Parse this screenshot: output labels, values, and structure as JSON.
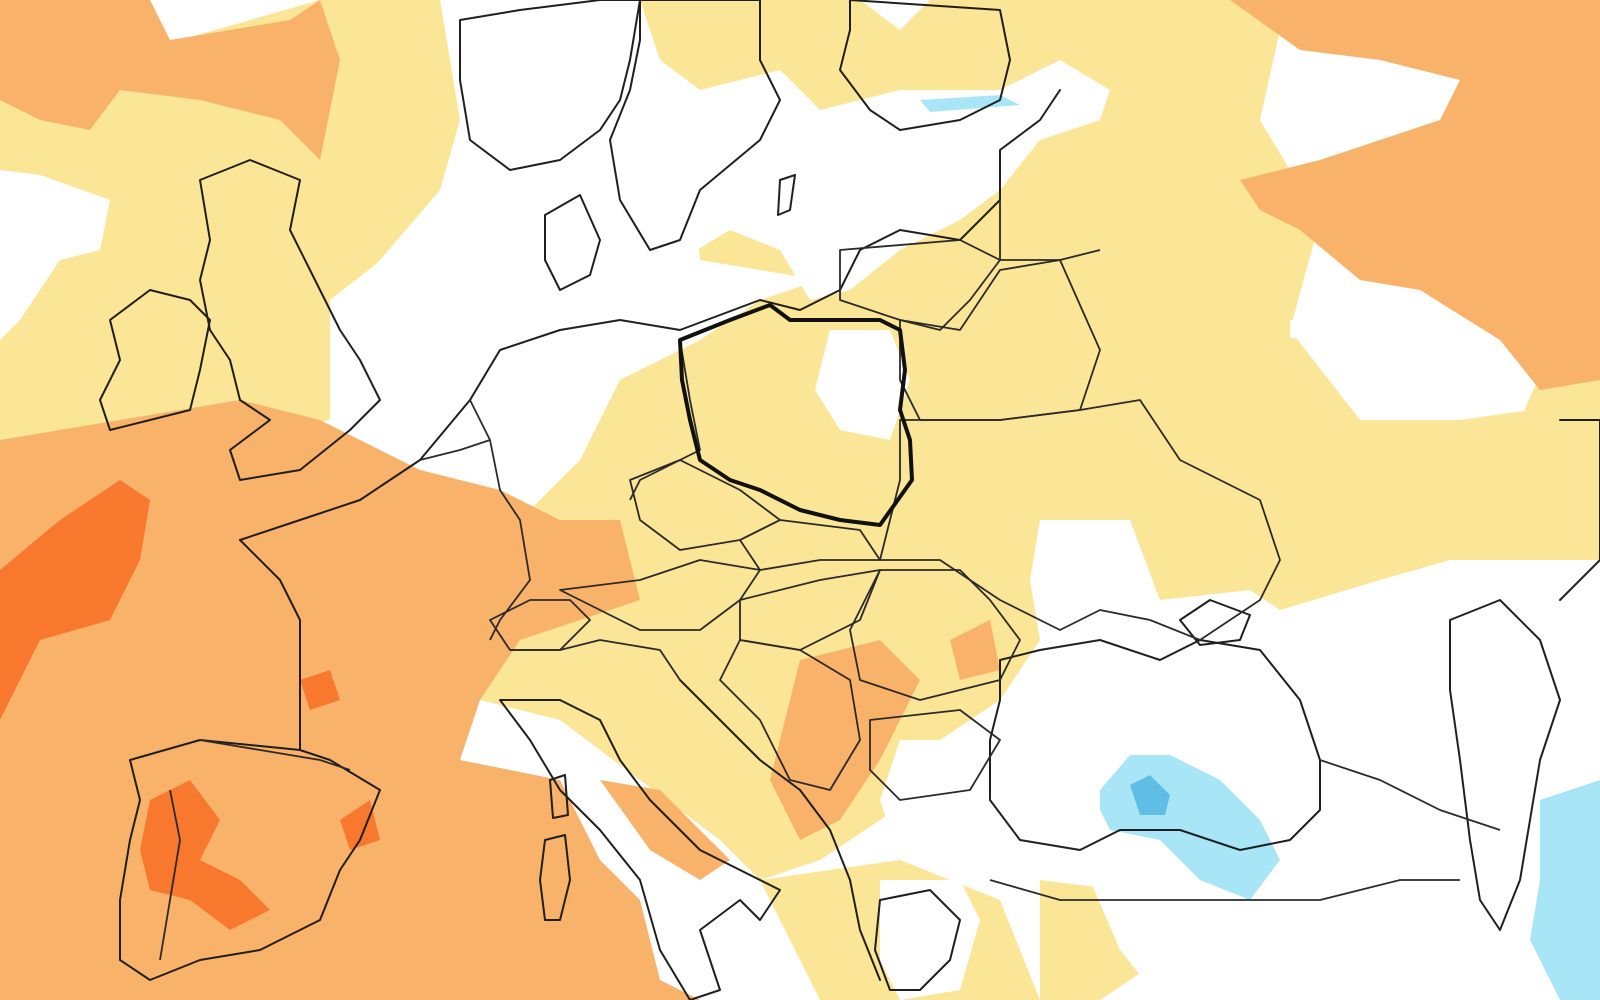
{
  "map": {
    "type": "anomaly-map",
    "region": "Europe",
    "highlighted_country": "Poland",
    "colors": {
      "background": "#ffffff",
      "anomaly_light_warm": "#fbe597",
      "anomaly_warm": "#f9b26a",
      "anomaly_strong_warm": "#f8782e",
      "anomaly_light_cool": "#a8e6f7",
      "anomaly_cool": "#5fbde6",
      "coastline": "#1f1f1f",
      "highlight_border": "#111111"
    }
  }
}
